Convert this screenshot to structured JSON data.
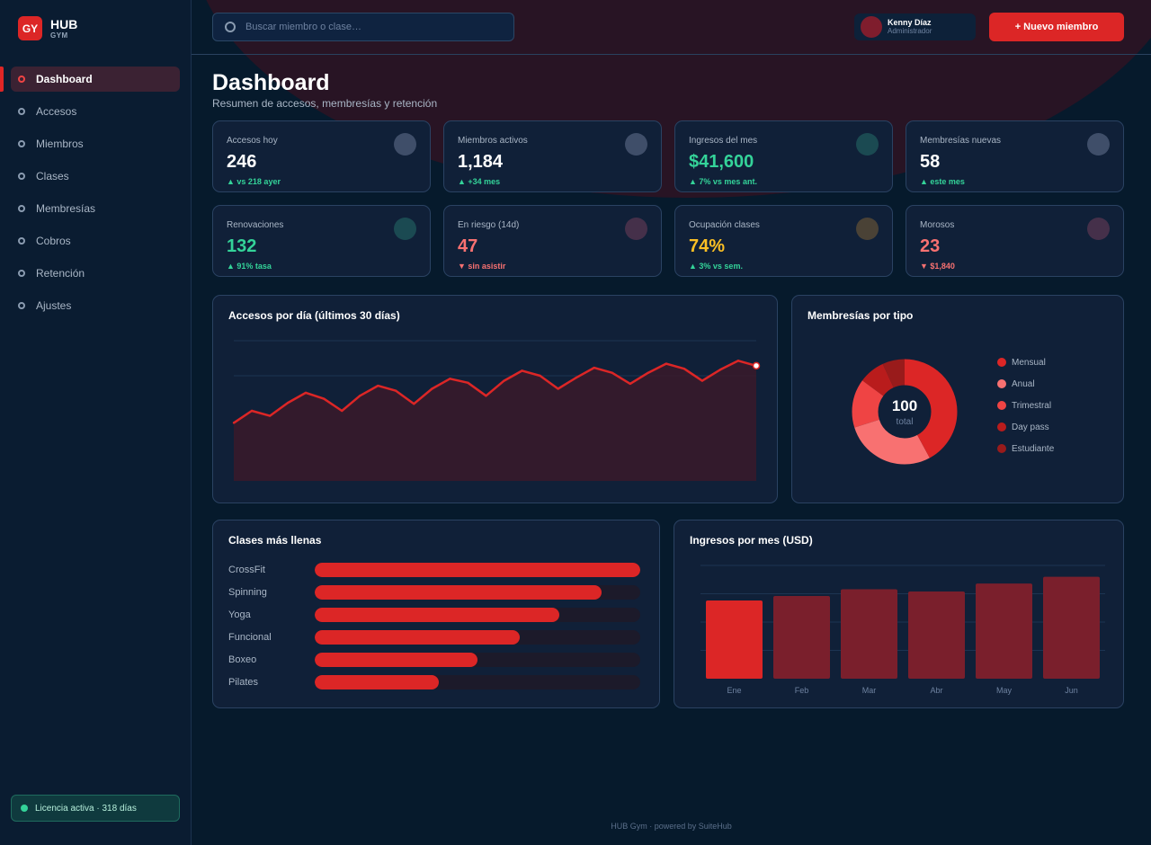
{
  "brand": {
    "logo": "GY",
    "title": "HUB",
    "subtitle": "GYM"
  },
  "nav": [
    {
      "label": "Dashboard",
      "active": true
    },
    {
      "label": "Accesos"
    },
    {
      "label": "Miembros"
    },
    {
      "label": "Clases"
    },
    {
      "label": "Membresías"
    },
    {
      "label": "Cobros"
    },
    {
      "label": "Retención"
    },
    {
      "label": "Ajustes"
    }
  ],
  "license": {
    "label": "Licencia activa · 318 días"
  },
  "search": {
    "placeholder": "Buscar miembro o clase…"
  },
  "user": {
    "name": "Kenny Díaz",
    "role": "Administrador"
  },
  "new_member_label": "+ Nuevo miembro",
  "page": {
    "title": "Dashboard",
    "subtitle": "Resumen de accesos, membresías y retención"
  },
  "kpis": [
    {
      "label": "Accesos hoy",
      "value": "246",
      "delta": "▲ vs 218 ayer",
      "value_color": "#ffffff",
      "delta_color": "#34d399",
      "icon_color": "#3f4e69"
    },
    {
      "label": "Miembros activos",
      "value": "1,184",
      "delta": "▲ +34 mes",
      "value_color": "#ffffff",
      "delta_color": "#34d399",
      "icon_color": "#3f4e69"
    },
    {
      "label": "Ingresos del mes",
      "value": "$41,600",
      "delta": "▲ 7% vs mes ant.",
      "value_color": "#34d399",
      "delta_color": "#34d399",
      "icon_color": "#1b4a52"
    },
    {
      "label": "Membresías nuevas",
      "value": "58",
      "delta": "▲ este mes",
      "value_color": "#ffffff",
      "delta_color": "#34d399",
      "icon_color": "#3f4e69"
    },
    {
      "label": "Renovaciones",
      "value": "132",
      "delta": "▲ 91% tasa",
      "value_color": "#34d399",
      "delta_color": "#34d399",
      "icon_color": "#1b4a52"
    },
    {
      "label": "En riesgo (14d)",
      "value": "47",
      "delta": "▼ sin asistir",
      "value_color": "#f87171",
      "delta_color": "#f87171",
      "icon_color": "#45304a"
    },
    {
      "label": "Ocupación clases",
      "value": "74%",
      "delta": "▲ 3% vs sem.",
      "value_color": "#fbbf24",
      "delta_color": "#34d399",
      "icon_color": "#4a4236"
    },
    {
      "label": "Morosos",
      "value": "23",
      "delta": "▼ $1,840",
      "value_color": "#f87171",
      "delta_color": "#f87171",
      "icon_color": "#45304a"
    }
  ],
  "charts": {
    "line_title": "Accesos por día (últimos 30 días)",
    "donut_title": "Membresías por tipo",
    "donut_center_value": "100",
    "donut_center_label": "total",
    "hbar_title": "Clases más llenas",
    "vbar_title": "Ingresos por mes (USD)"
  },
  "chart_data": [
    {
      "type": "area",
      "title": "Accesos por día (últimos 30 días)",
      "x": [
        1,
        2,
        3,
        4,
        5,
        6,
        7,
        8,
        9,
        10,
        11,
        12,
        13,
        14,
        15,
        16,
        17,
        18,
        19,
        20,
        21,
        22,
        23,
        24,
        25,
        26,
        27,
        28,
        29,
        30
      ],
      "values": [
        128,
        140,
        135,
        148,
        158,
        152,
        140,
        155,
        165,
        160,
        147,
        162,
        172,
        168,
        155,
        170,
        180,
        175,
        162,
        173,
        183,
        178,
        167,
        178,
        187,
        182,
        170,
        181,
        190,
        185
      ],
      "ylim": [
        70,
        210
      ],
      "grid": true,
      "color": "#dc2626"
    },
    {
      "type": "pie",
      "title": "Membresías por tipo",
      "categories": [
        "Mensual",
        "Anual",
        "Trimestral",
        "Day pass",
        "Estudiante"
      ],
      "values": [
        42,
        28,
        15,
        8,
        7
      ],
      "colors": [
        "#dc2626",
        "#f87171",
        "#ef4444",
        "#b91c1c",
        "#991b1b"
      ]
    },
    {
      "type": "bar",
      "orientation": "horizontal",
      "title": "Clases más llenas",
      "categories": [
        "CrossFit",
        "Spinning",
        "Yoga",
        "Funcional",
        "Boxeo",
        "Pilates"
      ],
      "values": [
        100,
        88,
        75,
        63,
        50,
        38
      ],
      "xlim": [
        0,
        100
      ]
    },
    {
      "type": "bar",
      "title": "Ingresos por mes (USD)",
      "categories": [
        "Ene",
        "Feb",
        "Mar",
        "Abr",
        "May",
        "Jun"
      ],
      "values": [
        34500,
        36500,
        39500,
        38500,
        42000,
        45000
      ],
      "ylim": [
        0,
        50000
      ],
      "grid": true,
      "highlight_color": "#dc2626",
      "bar_color": "#7a1f2c"
    }
  ],
  "footer": "HUB Gym  ·  powered by SuiteHub"
}
